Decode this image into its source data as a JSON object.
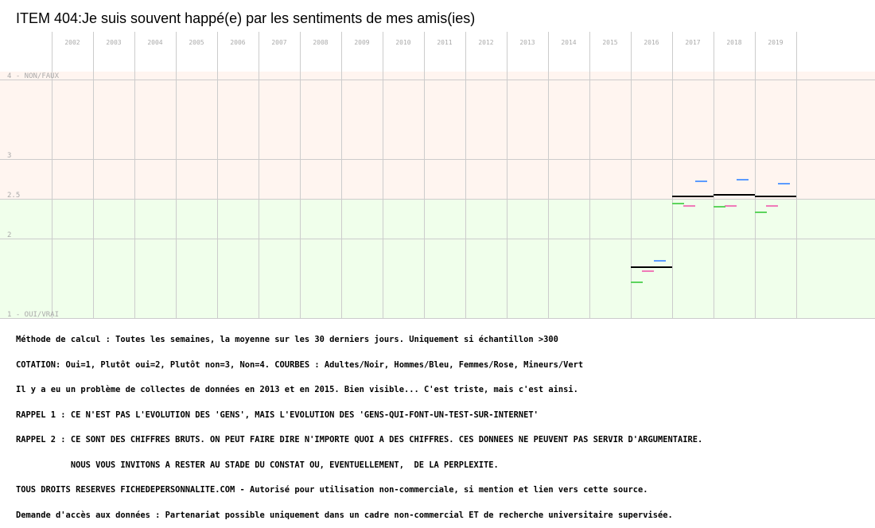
{
  "chart_data": {
    "type": "line",
    "title": "ITEM 404:Je suis souvent happé(e) par les sentiments de mes amis(ies)",
    "categories": [
      "2002",
      "2003",
      "2004",
      "2005",
      "2006",
      "2007",
      "2008",
      "2009",
      "2010",
      "2011",
      "2012",
      "2013",
      "2014",
      "2015",
      "2016",
      "2017",
      "2018",
      "2019"
    ],
    "ylim": [
      1,
      4.1
    ],
    "yticks": [
      {
        "value": 4,
        "label": "4 - NON/FAUX"
      },
      {
        "value": 3,
        "label": "3"
      },
      {
        "value": 2.5,
        "label": "2.5"
      },
      {
        "value": 2,
        "label": "2"
      },
      {
        "value": 1,
        "label": "1 - OUI/VRAI"
      }
    ],
    "grid": true,
    "bands": [
      {
        "from": 2.5,
        "to": 4.1,
        "color": "#fff5f0"
      },
      {
        "from": 1,
        "to": 2.5,
        "color": "#f0ffeb"
      }
    ],
    "series": [
      {
        "color": "#000000",
        "values": [
          null,
          null,
          null,
          null,
          null,
          null,
          null,
          null,
          null,
          null,
          null,
          null,
          null,
          null,
          1.64,
          2.53,
          2.55,
          2.53
        ]
      },
      {
        "color": "#5b9bff",
        "values": [
          null,
          null,
          null,
          null,
          null,
          null,
          null,
          null,
          null,
          null,
          null,
          null,
          null,
          null,
          1.72,
          2.72,
          2.74,
          2.69
        ]
      },
      {
        "color": "#f07ab8",
        "values": [
          null,
          null,
          null,
          null,
          null,
          null,
          null,
          null,
          null,
          null,
          null,
          null,
          null,
          null,
          1.59,
          2.41,
          2.41,
          2.41
        ]
      },
      {
        "color": "#5dd45d",
        "values": [
          null,
          null,
          null,
          null,
          null,
          null,
          null,
          null,
          null,
          null,
          null,
          null,
          null,
          null,
          1.45,
          2.44,
          2.4,
          2.33
        ]
      }
    ]
  },
  "notes": [
    "Méthode de calcul : Toutes les semaines, la moyenne sur les 30 derniers jours. Uniquement si échantillon >300",
    "COTATION: Oui=1, Plutôt oui=2, Plutôt non=3, Non=4. COURBES : Adultes/Noir, Hommes/Bleu, Femmes/Rose, Mineurs/Vert",
    "Il y a eu un problème de collectes de données en 2013 et en 2015. Bien visible... C'est triste, mais c'est ainsi.",
    "RAPPEL 1 : CE N'EST PAS L'EVOLUTION DES 'GENS', MAIS L'EVOLUTION DES 'GENS-QUI-FONT-UN-TEST-SUR-INTERNET'",
    "RAPPEL 2 : CE SONT DES CHIFFRES BRUTS. ON PEUT FAIRE DIRE N'IMPORTE QUOI A DES CHIFFRES. CES DONNEES NE PEUVENT PAS SERVIR D'ARGUMENTAIRE.",
    "           NOUS VOUS INVITONS A RESTER AU STADE DU CONSTAT OU, EVENTUELLEMENT,  DE LA PERPLEXITE.",
    "TOUS DROITS RESERVES FICHEDEPERSONNALITE.COM - Autorisé pour utilisation non-commerciale, si mention et lien vers cette source.",
    "Demande d'accès aux données : Partenariat possible uniquement dans un cadre non-commercial ET de recherche universitaire supervisée."
  ]
}
